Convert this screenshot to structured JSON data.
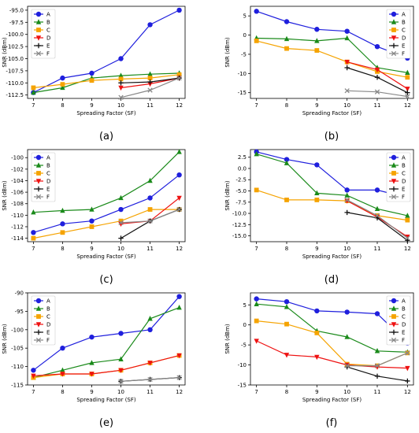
{
  "chart_data": [
    {
      "type": "line",
      "panel_label": "(a)",
      "xlabel": "Spreading Factor (SF)",
      "ylabel": "SNR (dBm)",
      "x_ticks": [
        7,
        8,
        9,
        10,
        11,
        12
      ],
      "y_ticks": [
        -95.0,
        -97.5,
        -100.0,
        -102.5,
        -105.0,
        -107.5,
        -110.0,
        -112.5
      ],
      "xlim": [
        6.8,
        12.2
      ],
      "ylim": [
        -113.2,
        -94.2
      ],
      "legend": "top-left",
      "series": [
        {
          "name": "A",
          "color": "#1f1fdd",
          "marker": "circle",
          "x": [
            7,
            8,
            9,
            10,
            11,
            12
          ],
          "y": [
            -112,
            -109,
            -108,
            -105,
            -98,
            -95
          ]
        },
        {
          "name": "B",
          "color": "#1a8a1a",
          "marker": "triangle-up",
          "x": [
            7,
            8,
            9,
            10,
            11,
            12
          ],
          "y": [
            -112,
            -111,
            -109,
            -108.5,
            -108.2,
            -108
          ]
        },
        {
          "name": "C",
          "color": "#f5a300",
          "marker": "square",
          "x": [
            7,
            8,
            9,
            10,
            11,
            12
          ],
          "y": [
            -111,
            -110.3,
            -109.5,
            -109.2,
            -109,
            -108.3
          ]
        },
        {
          "name": "D",
          "color": "#ee1111",
          "marker": "triangle-down",
          "x": [
            10,
            11,
            12
          ],
          "y": [
            -111,
            -110.2,
            -109
          ]
        },
        {
          "name": "E",
          "color": "#111111",
          "marker": "plus",
          "x": [
            10,
            11,
            12
          ],
          "y": [
            -110,
            -109.8,
            -109
          ]
        },
        {
          "name": "F",
          "color": "#888888",
          "marker": "x",
          "x": [
            10,
            11,
            12
          ],
          "y": [
            -113,
            -111.5,
            -109
          ]
        }
      ]
    },
    {
      "type": "line",
      "panel_label": "(b)",
      "xlabel": "Spreading Factor (SF)",
      "ylabel": "SNR (dBm)",
      "x_ticks": [
        7,
        8,
        9,
        10,
        11,
        12
      ],
      "y_ticks": [
        5,
        0,
        -5,
        -10,
        -15
      ],
      "xlim": [
        6.8,
        12.2
      ],
      "ylim": [
        -16.5,
        7.5
      ],
      "legend": "top-right",
      "series": [
        {
          "name": "A",
          "color": "#1f1fdd",
          "marker": "circle",
          "x": [
            7,
            8,
            9,
            10,
            11,
            12
          ],
          "y": [
            6.2,
            3.5,
            1.5,
            1,
            -3,
            -6
          ]
        },
        {
          "name": "B",
          "color": "#1a8a1a",
          "marker": "triangle-up",
          "x": [
            7,
            8,
            9,
            10,
            11,
            12
          ],
          "y": [
            -0.8,
            -1,
            -1.5,
            -0.8,
            -8.5,
            -9.8
          ]
        },
        {
          "name": "C",
          "color": "#f5a300",
          "marker": "square",
          "x": [
            7,
            8,
            9,
            10,
            11,
            12
          ],
          "y": [
            -1.5,
            -3.5,
            -4,
            -7,
            -9.5,
            -11
          ]
        },
        {
          "name": "D",
          "color": "#ee1111",
          "marker": "triangle-down",
          "x": [
            10,
            11,
            12
          ],
          "y": [
            -7,
            -9,
            -14
          ]
        },
        {
          "name": "E",
          "color": "#111111",
          "marker": "plus",
          "x": [
            10,
            11,
            12
          ],
          "y": [
            -8.5,
            -11,
            -15
          ]
        },
        {
          "name": "F",
          "color": "#888888",
          "marker": "x",
          "x": [
            10,
            11,
            12
          ],
          "y": [
            -14.5,
            -14.8,
            -16
          ]
        }
      ]
    },
    {
      "type": "line",
      "panel_label": "(c)",
      "xlabel": "Spreading Factor (SF)",
      "ylabel": "SNR (dBm)",
      "x_ticks": [
        7,
        8,
        9,
        10,
        11,
        12
      ],
      "y_ticks": [
        -100,
        -102,
        -104,
        -106,
        -108,
        -110,
        -112,
        -114
      ],
      "xlim": [
        6.8,
        12.2
      ],
      "ylim": [
        -114.6,
        -98.6
      ],
      "legend": "top-left",
      "series": [
        {
          "name": "A",
          "color": "#1f1fdd",
          "marker": "circle",
          "x": [
            7,
            8,
            9,
            10,
            11,
            12
          ],
          "y": [
            -113,
            -111.5,
            -111,
            -109,
            -107,
            -103
          ]
        },
        {
          "name": "B",
          "color": "#1a8a1a",
          "marker": "triangle-up",
          "x": [
            7,
            8,
            9,
            10,
            11,
            12
          ],
          "y": [
            -109.5,
            -109.2,
            -109,
            -107,
            -104,
            -99
          ]
        },
        {
          "name": "C",
          "color": "#f5a300",
          "marker": "square",
          "x": [
            7,
            8,
            9,
            10,
            11,
            12
          ],
          "y": [
            -114,
            -113,
            -112,
            -111,
            -109,
            -109
          ]
        },
        {
          "name": "D",
          "color": "#ee1111",
          "marker": "triangle-down",
          "x": [
            10,
            11,
            12
          ],
          "y": [
            -111.5,
            -111,
            -107
          ]
        },
        {
          "name": "E",
          "color": "#111111",
          "marker": "plus",
          "x": [
            10,
            11,
            12
          ],
          "y": [
            -114,
            -111,
            -109
          ]
        },
        {
          "name": "F",
          "color": "#888888",
          "marker": "x",
          "x": [
            10,
            11,
            12
          ],
          "y": [
            -111.3,
            -111,
            -109
          ]
        }
      ]
    },
    {
      "type": "line",
      "panel_label": "(d)",
      "xlabel": "Spreading Factor (SF)",
      "ylabel": "SNR (dBm)",
      "x_ticks": [
        7,
        8,
        9,
        10,
        11,
        12
      ],
      "y_ticks": [
        2.5,
        0.0,
        -2.5,
        -5.0,
        -7.5,
        -10.0,
        -12.5,
        -15.0
      ],
      "xlim": [
        6.8,
        12.2
      ],
      "ylim": [
        -16.3,
        4.2
      ],
      "legend": "top-right",
      "series": [
        {
          "name": "A",
          "color": "#1f1fdd",
          "marker": "circle",
          "x": [
            7,
            8,
            9,
            10,
            11,
            12
          ],
          "y": [
            3.7,
            2,
            0.8,
            -4.8,
            -4.8,
            -6.5
          ]
        },
        {
          "name": "B",
          "color": "#1a8a1a",
          "marker": "triangle-up",
          "x": [
            7,
            8,
            9,
            10,
            11,
            12
          ],
          "y": [
            3.2,
            1.2,
            -5.5,
            -6,
            -9,
            -10.5
          ]
        },
        {
          "name": "C",
          "color": "#f5a300",
          "marker": "square",
          "x": [
            7,
            8,
            9,
            10,
            11,
            12
          ],
          "y": [
            -4.8,
            -7,
            -7,
            -7.2,
            -10.5,
            -11.5
          ]
        },
        {
          "name": "D",
          "color": "#ee1111",
          "marker": "triangle-down",
          "x": [
            10,
            11,
            12
          ],
          "y": [
            -7.2,
            -10.8,
            -15.2
          ]
        },
        {
          "name": "E",
          "color": "#111111",
          "marker": "plus",
          "x": [
            10,
            11,
            12
          ],
          "y": [
            -9.8,
            -11,
            -16
          ]
        },
        {
          "name": "F",
          "color": "#888888",
          "marker": "x",
          "x": [
            10,
            11,
            12
          ],
          "y": [
            -7,
            -10.5,
            -15.5
          ]
        }
      ]
    },
    {
      "type": "line",
      "panel_label": "(e)",
      "xlabel": "Spreading Factor (SF)",
      "ylabel": "SNR (dBm)",
      "x_ticks": [
        7,
        8,
        9,
        10,
        11,
        12
      ],
      "y_ticks": [
        -90,
        -95,
        -100,
        -105,
        -110,
        -115
      ],
      "xlim": [
        6.8,
        12.2
      ],
      "ylim": [
        -115,
        -90
      ],
      "legend": "top-left",
      "series": [
        {
          "name": "A",
          "color": "#1f1fdd",
          "marker": "circle",
          "x": [
            7,
            8,
            9,
            10,
            11,
            12
          ],
          "y": [
            -111,
            -105,
            -102,
            -101,
            -100,
            -91
          ]
        },
        {
          "name": "B",
          "color": "#1a8a1a",
          "marker": "triangle-up",
          "x": [
            7,
            8,
            9,
            10,
            11,
            12
          ],
          "y": [
            -113,
            -111,
            -109,
            -108,
            -97,
            -94
          ]
        },
        {
          "name": "C",
          "color": "#f5a300",
          "marker": "square",
          "x": [
            7,
            8,
            9,
            10,
            11,
            12
          ],
          "y": [
            -113,
            -112,
            -112,
            -111,
            -109,
            -107
          ]
        },
        {
          "name": "D",
          "color": "#ee1111",
          "marker": "triangle-down",
          "x": [
            7,
            8,
            9,
            10,
            11,
            12
          ],
          "y": [
            -112.5,
            -112,
            -112,
            -111,
            -109,
            -107
          ]
        },
        {
          "name": "E",
          "color": "#111111",
          "marker": "plus",
          "x": [
            10,
            11,
            12
          ],
          "y": [
            -114,
            -113.5,
            -113
          ]
        },
        {
          "name": "F",
          "color": "#888888",
          "marker": "x",
          "x": [
            10,
            11,
            12
          ],
          "y": [
            -114,
            -113.5,
            -113
          ]
        }
      ]
    },
    {
      "type": "line",
      "panel_label": "(f)",
      "xlabel": "Spreading Factor (SF)",
      "ylabel": "SNR (dBm)",
      "x_ticks": [
        7,
        8,
        9,
        10,
        11,
        12
      ],
      "y_ticks": [
        5,
        0,
        -5,
        -10,
        -15
      ],
      "xlim": [
        6.8,
        12.2
      ],
      "ylim": [
        -15,
        8
      ],
      "legend": "top-right",
      "series": [
        {
          "name": "A",
          "color": "#1f1fdd",
          "marker": "circle",
          "x": [
            7,
            8,
            9,
            10,
            11,
            12
          ],
          "y": [
            6.5,
            5.8,
            3.5,
            3.2,
            2.8,
            -4.5
          ]
        },
        {
          "name": "B",
          "color": "#1a8a1a",
          "marker": "triangle-up",
          "x": [
            7,
            8,
            9,
            10,
            11,
            12
          ],
          "y": [
            5.2,
            4.5,
            -1.5,
            -3,
            -6.5,
            -6.8
          ]
        },
        {
          "name": "C",
          "color": "#f5a300",
          "marker": "square",
          "x": [
            7,
            8,
            9,
            10,
            11,
            12
          ],
          "y": [
            1,
            0.2,
            -2,
            -9.8,
            -10.2,
            -7
          ]
        },
        {
          "name": "D",
          "color": "#ee1111",
          "marker": "triangle-down",
          "x": [
            7,
            8,
            9,
            10,
            11,
            12
          ],
          "y": [
            -4,
            -7.5,
            -8,
            -10,
            -10.5,
            -10.8
          ]
        },
        {
          "name": "E",
          "color": "#111111",
          "marker": "plus",
          "x": [
            10,
            11,
            12
          ],
          "y": [
            -10.5,
            -12.8,
            -14
          ]
        },
        {
          "name": "F",
          "color": "#888888",
          "marker": "x",
          "x": [
            10,
            11,
            12
          ],
          "y": [
            -10.2,
            -10.2,
            -7
          ]
        }
      ]
    }
  ]
}
